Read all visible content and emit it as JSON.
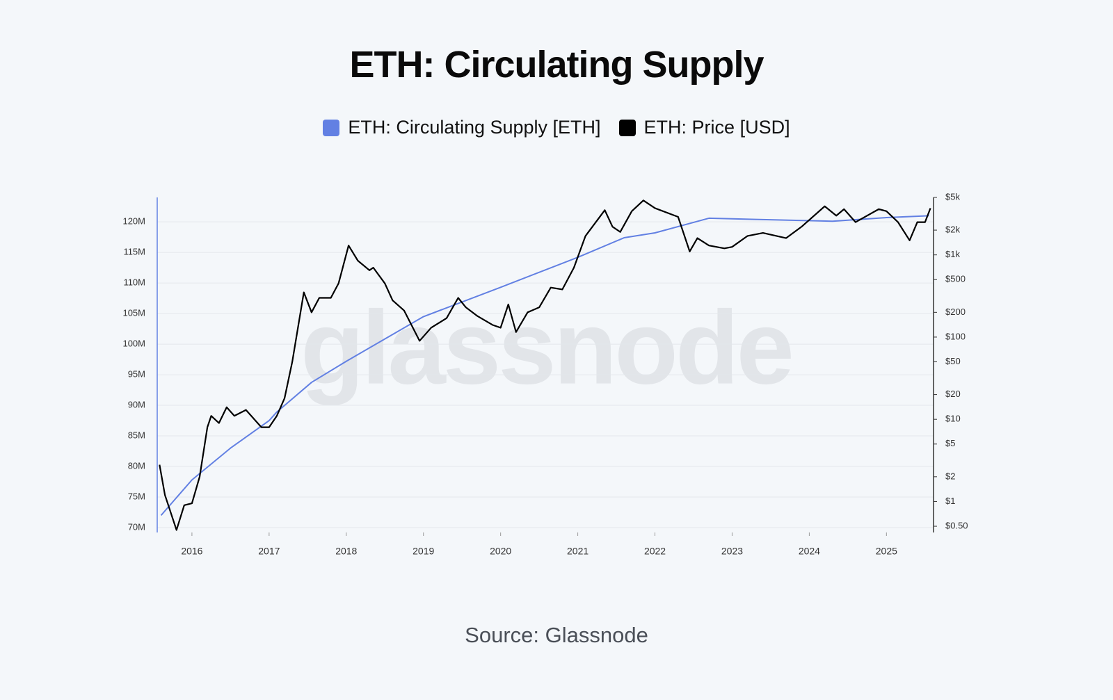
{
  "chart_data": {
    "type": "line",
    "title": "ETH: Circulating Supply",
    "source": "Source: Glassnode",
    "watermark": "glassnode",
    "xlim": [
      2015.55,
      2025.61
    ],
    "xticks": [
      2016,
      2017,
      2018,
      2019,
      2020,
      2021,
      2022,
      2023,
      2024,
      2025
    ],
    "ylim": [
      69200000,
      124000000
    ],
    "yticks": [
      {
        "value": 70000000,
        "label": "70M"
      },
      {
        "value": 75000000,
        "label": "75M"
      },
      {
        "value": 80000000,
        "label": "80M"
      },
      {
        "value": 85000000,
        "label": "85M"
      },
      {
        "value": 90000000,
        "label": "90M"
      },
      {
        "value": 95000000,
        "label": "95M"
      },
      {
        "value": 100000000,
        "label": "100M"
      },
      {
        "value": 105000000,
        "label": "105M"
      },
      {
        "value": 110000000,
        "label": "110M"
      },
      {
        "value": 115000000,
        "label": "115M"
      },
      {
        "value": 120000000,
        "label": "120M"
      }
    ],
    "y2lim": [
      0.42,
      5000
    ],
    "y2scale": "log",
    "y2ticks": [
      {
        "value": 0.5,
        "label": "$0.50"
      },
      {
        "value": 1,
        "label": "$1"
      },
      {
        "value": 2,
        "label": "$2"
      },
      {
        "value": 5,
        "label": "$5"
      },
      {
        "value": 10,
        "label": "$10"
      },
      {
        "value": 20,
        "label": "$20"
      },
      {
        "value": 50,
        "label": "$50"
      },
      {
        "value": 100,
        "label": "$100"
      },
      {
        "value": 200,
        "label": "$200"
      },
      {
        "value": 500,
        "label": "$500"
      },
      {
        "value": 1000,
        "label": "$1k"
      },
      {
        "value": 2000,
        "label": "$2k"
      },
      {
        "value": 5000,
        "label": "$5k"
      }
    ],
    "grid": true,
    "series": [
      {
        "name": "ETH: Circulating Supply [ETH]",
        "color": "#6280e3",
        "axis": "y",
        "x": [
          2015.6,
          2016.0,
          2016.5,
          2017.0,
          2017.1,
          2017.55,
          2018.0,
          2019.0,
          2020.0,
          2021.0,
          2021.6,
          2022.0,
          2022.7,
          2023.0,
          2023.3,
          2024.0,
          2024.3,
          2025.0,
          2025.55
        ],
        "values": [
          72000000,
          77800000,
          83000000,
          87500000,
          88900000,
          93750000,
          97200000,
          104500000,
          109300000,
          114200000,
          117400000,
          118200000,
          120600000,
          120500000,
          120400000,
          120200000,
          120100000,
          120700000,
          121000000
        ]
      },
      {
        "name": "ETH: Price [USD]",
        "color": "#000000",
        "axis": "y2",
        "x": [
          2015.58,
          2015.65,
          2015.8,
          2015.9,
          2016.0,
          2016.1,
          2016.2,
          2016.25,
          2016.35,
          2016.45,
          2016.55,
          2016.7,
          2016.9,
          2017.0,
          2017.1,
          2017.2,
          2017.3,
          2017.45,
          2017.55,
          2017.65,
          2017.8,
          2017.9,
          2018.03,
          2018.15,
          2018.3,
          2018.35,
          2018.5,
          2018.6,
          2018.75,
          2018.95,
          2019.1,
          2019.3,
          2019.45,
          2019.55,
          2019.7,
          2019.9,
          2020.0,
          2020.1,
          2020.2,
          2020.35,
          2020.5,
          2020.65,
          2020.8,
          2020.95,
          2021.1,
          2021.35,
          2021.45,
          2021.55,
          2021.7,
          2021.85,
          2022.0,
          2022.3,
          2022.45,
          2022.55,
          2022.7,
          2022.9,
          2023.0,
          2023.2,
          2023.4,
          2023.7,
          2023.9,
          2024.2,
          2024.35,
          2024.45,
          2024.6,
          2024.9,
          2025.0,
          2025.15,
          2025.3,
          2025.4,
          2025.5,
          2025.57
        ],
        "values": [
          2.8,
          1.2,
          0.45,
          0.9,
          0.95,
          2,
          8,
          11,
          9,
          14,
          11,
          13,
          8,
          8,
          11,
          18,
          50,
          350,
          200,
          300,
          300,
          450,
          1300,
          850,
          650,
          700,
          450,
          280,
          210,
          90,
          130,
          170,
          300,
          230,
          180,
          140,
          130,
          250,
          115,
          200,
          230,
          400,
          380,
          700,
          1700,
          3500,
          2200,
          1900,
          3400,
          4600,
          3700,
          2900,
          1100,
          1600,
          1300,
          1200,
          1250,
          1700,
          1850,
          1600,
          2200,
          3900,
          3000,
          3600,
          2500,
          3600,
          3400,
          2500,
          1500,
          2500,
          2500,
          3700
        ]
      }
    ]
  }
}
